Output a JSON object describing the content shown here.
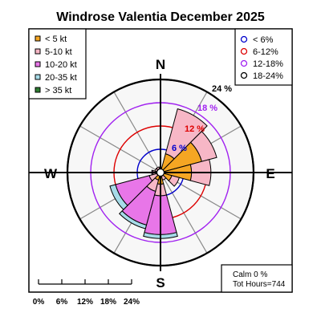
{
  "chart_data": {
    "type": "windrose",
    "title": "Windrose  Valentia December 2025",
    "compass_labels": [
      "N",
      "E",
      "S",
      "W"
    ],
    "speed_bins": [
      {
        "label": "< 5  kt",
        "color": "#f5a623"
      },
      {
        "label": "5-10 kt",
        "color": "#f7b7c6"
      },
      {
        "label": "10-20 kt",
        "color": "#e876e8"
      },
      {
        "label": "20-35 kt",
        "color": "#a6dbe8"
      },
      {
        "label": "> 35 kt",
        "color": "#2e7d32"
      }
    ],
    "ring_legend": [
      {
        "label": "< 6%",
        "color": "#0000cc"
      },
      {
        "label": "6-12%",
        "color": "#dd0000"
      },
      {
        "label": "12-18%",
        "color": "#a020f0"
      },
      {
        "label": "18-24%",
        "color": "#000000"
      }
    ],
    "rings": [
      {
        "value": 6,
        "label": "6 %",
        "color": "#0000cc"
      },
      {
        "value": 12,
        "label": "12 %",
        "color": "#dd0000"
      },
      {
        "value": 18,
        "label": "18 %",
        "color": "#a020f0"
      },
      {
        "value": 24,
        "label": "24 %",
        "color": "#000000"
      }
    ],
    "radial_max": 24,
    "sector_width_deg": 30,
    "sectors": [
      {
        "direction": 0,
        "values": [
          0.8,
          0.5,
          0,
          0,
          0
        ]
      },
      {
        "direction": 30,
        "values": [
          5,
          12,
          0,
          0,
          0
        ]
      },
      {
        "direction": 60,
        "values": [
          11,
          4,
          0,
          0,
          0
        ]
      },
      {
        "direction": 90,
        "values": [
          8,
          5,
          0,
          0,
          0
        ]
      },
      {
        "direction": 120,
        "values": [
          3,
          2,
          0,
          0,
          0
        ]
      },
      {
        "direction": 150,
        "values": [
          1,
          1,
          0,
          0,
          0
        ]
      },
      {
        "direction": 180,
        "values": [
          3,
          3,
          10,
          1,
          0
        ]
      },
      {
        "direction": 210,
        "values": [
          2,
          3,
          9,
          1,
          0
        ]
      },
      {
        "direction": 240,
        "values": [
          1,
          2,
          9,
          1.5,
          0
        ]
      },
      {
        "direction": 270,
        "values": [
          1,
          1,
          0.3,
          0,
          0
        ]
      },
      {
        "direction": 300,
        "values": [
          1,
          0.5,
          0,
          0,
          0
        ]
      },
      {
        "direction": 330,
        "values": [
          1,
          0.5,
          0,
          0,
          0
        ]
      }
    ],
    "scale_labels": [
      "0%",
      "6%",
      "12%",
      "18%",
      "24%"
    ],
    "calm_label": "Calm 0 %",
    "total_hours_label": "Tot Hours=744"
  }
}
